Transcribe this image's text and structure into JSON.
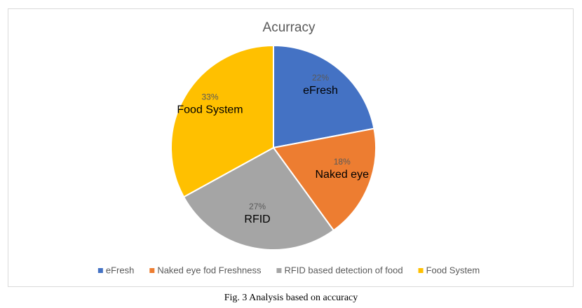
{
  "chart_data": {
    "type": "pie",
    "title": "Acurracy",
    "categories": [
      "eFresh",
      "Naked eye fod Freshness",
      "RFID based detection of food",
      "Food System"
    ],
    "slice_labels": [
      "eFresh",
      "Naked eye",
      "RFID",
      "Food System"
    ],
    "values": [
      22,
      18,
      27,
      33
    ],
    "value_labels": [
      "22%",
      "18%",
      "27%",
      "33%"
    ],
    "colors": [
      "#4472c4",
      "#ed7d31",
      "#a5a5a5",
      "#ffc000"
    ],
    "legend": "bottom"
  },
  "caption": "Fig. 3  Analysis based on accuracy"
}
